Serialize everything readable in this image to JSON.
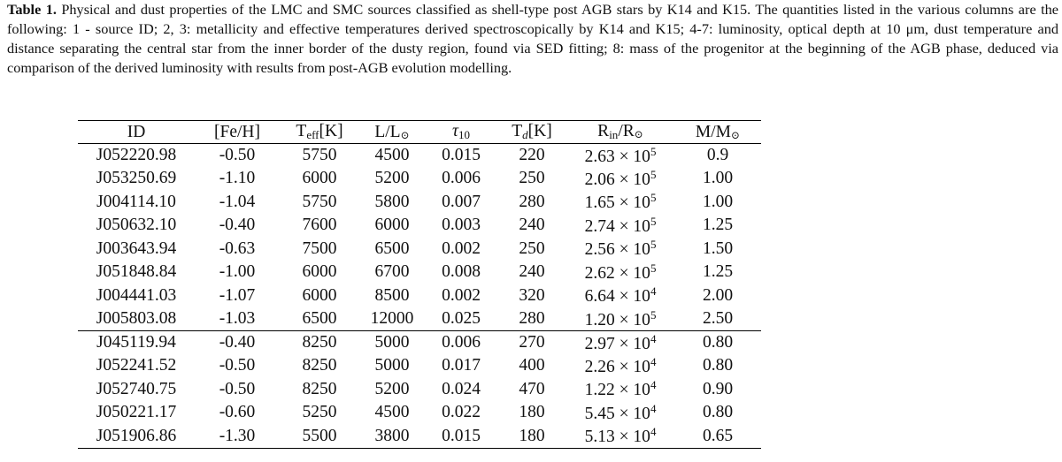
{
  "caption": {
    "label": "Table 1.",
    "text": " Physical and dust properties of the LMC and SMC sources classified as shell-type post AGB stars by K14 and K15. The quantities listed in the various columns are the following: 1 - source ID; 2, 3: metallicity and effective temperatures derived spectroscopically by K14 and K15; 4-7: luminosity, optical depth at 10 μm, dust temperature and distance separating the central star from the inner border of the dusty region, found via SED fitting; 8: mass of the progenitor at the beginning of the AGB phase, deduced via comparison of the derived luminosity with results from post-AGB evolution modelling."
  },
  "headers": {
    "id": "ID",
    "feh": "[Fe/H]",
    "teff_main": "T",
    "teff_sub": "eff",
    "teff_unit": "[K]",
    "lum_main": "L/L",
    "lum_sun": "⊙",
    "tau_main": "τ",
    "tau_sub": "10",
    "td_main": "T",
    "td_sub": "d",
    "td_unit": "[K]",
    "rin_main": "R",
    "rin_sub": "in",
    "rin_unit": "/R",
    "rin_sun": "⊙",
    "mass_main": "M/M",
    "mass_sun": "⊙"
  },
  "rows": [
    {
      "id": "J052220.98",
      "feh": "-0.50",
      "teff": "5750",
      "lum": "4500",
      "tau": "0.015",
      "td": "220",
      "rin_mant": "2.63 × 10",
      "rin_exp": "5",
      "mass": "0.9"
    },
    {
      "id": "J053250.69",
      "feh": "-1.10",
      "teff": "6000",
      "lum": "5200",
      "tau": "0.006",
      "td": "250",
      "rin_mant": "2.06 × 10",
      "rin_exp": "5",
      "mass": "1.00"
    },
    {
      "id": "J004114.10",
      "feh": "-1.04",
      "teff": "5750",
      "lum": "5800",
      "tau": "0.007",
      "td": "280",
      "rin_mant": "1.65 × 10",
      "rin_exp": "5",
      "mass": "1.00"
    },
    {
      "id": "J050632.10",
      "feh": "-0.40",
      "teff": "7600",
      "lum": "6000",
      "tau": "0.003",
      "td": "240",
      "rin_mant": "2.74 × 10",
      "rin_exp": "5",
      "mass": "1.25"
    },
    {
      "id": "J003643.94",
      "feh": "-0.63",
      "teff": "7500",
      "lum": "6500",
      "tau": "0.002",
      "td": "250",
      "rin_mant": "2.56 × 10",
      "rin_exp": "5",
      "mass": "1.50"
    },
    {
      "id": "J051848.84",
      "feh": "-1.00",
      "teff": "6000",
      "lum": "6700",
      "tau": "0.008",
      "td": "240",
      "rin_mant": "2.62 × 10",
      "rin_exp": "5",
      "mass": "1.25"
    },
    {
      "id": "J004441.03",
      "feh": "-1.07",
      "teff": "6000",
      "lum": "8500",
      "tau": "0.002",
      "td": "320",
      "rin_mant": "6.64 × 10",
      "rin_exp": "4",
      "mass": "2.00"
    },
    {
      "id": "J005803.08",
      "feh": "-1.03",
      "teff": "6500",
      "lum": "12000",
      "tau": "0.025",
      "td": "280",
      "rin_mant": "1.20 × 10",
      "rin_exp": "5",
      "mass": "2.50"
    },
    {
      "id": "J045119.94",
      "feh": "-0.40",
      "teff": "8250",
      "lum": "5000",
      "tau": "0.006",
      "td": "270",
      "rin_mant": "2.97 × 10",
      "rin_exp": "4",
      "mass": "0.80"
    },
    {
      "id": "J052241.52",
      "feh": "-0.50",
      "teff": "8250",
      "lum": "5000",
      "tau": "0.017",
      "td": "400",
      "rin_mant": "2.26 × 10",
      "rin_exp": "4",
      "mass": "0.80"
    },
    {
      "id": "J052740.75",
      "feh": "-0.50",
      "teff": "8250",
      "lum": "5200",
      "tau": "0.024",
      "td": "470",
      "rin_mant": "1.22 × 10",
      "rin_exp": "4",
      "mass": "0.90"
    },
    {
      "id": "J050221.17",
      "feh": "-0.60",
      "teff": "5250",
      "lum": "4500",
      "tau": "0.022",
      "td": "180",
      "rin_mant": "5.45 × 10",
      "rin_exp": "4",
      "mass": "0.80"
    },
    {
      "id": "J051906.86",
      "feh": "-1.30",
      "teff": "5500",
      "lum": "3800",
      "tau": "0.015",
      "td": "180",
      "rin_mant": "5.13 × 10",
      "rin_exp": "4",
      "mass": "0.65"
    }
  ],
  "group_break_before_row": 8
}
